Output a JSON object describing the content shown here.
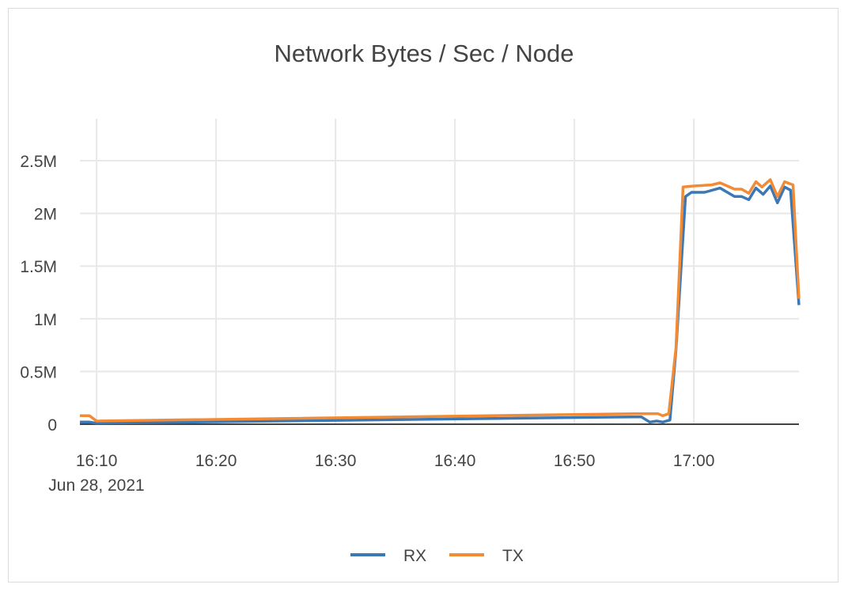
{
  "chart_data": {
    "type": "line",
    "title": "Network Bytes / Sec / Node",
    "xlabel": "",
    "ylabel": "",
    "date_label": "Jun 28, 2021",
    "xlim": [
      "16:08:36",
      "17:08:48"
    ],
    "ylim": [
      0,
      2900000
    ],
    "x_ticks": [
      "16:10",
      "16:20",
      "16:30",
      "16:40",
      "16:50",
      "17:00"
    ],
    "y_ticks": [
      {
        "value": 0,
        "label": "0"
      },
      {
        "value": 500000,
        "label": "0.5M"
      },
      {
        "value": 1000000,
        "label": "1M"
      },
      {
        "value": 1500000,
        "label": "1.5M"
      },
      {
        "value": 2000000,
        "label": "2M"
      },
      {
        "value": 2500000,
        "label": "2.5M"
      }
    ],
    "grid": true,
    "legend_position": "bottom",
    "series": [
      {
        "name": "RX",
        "color": "#3b78b4",
        "points": [
          [
            "16:08:36",
            20000
          ],
          [
            "16:09:24",
            20000
          ],
          [
            "16:10:00",
            10000
          ],
          [
            "16:55:00",
            70000
          ],
          [
            "16:55:36",
            70000
          ],
          [
            "16:56:18",
            20000
          ],
          [
            "16:56:54",
            30000
          ],
          [
            "16:57:24",
            20000
          ],
          [
            "16:58:00",
            40000
          ],
          [
            "16:58:30",
            700000
          ],
          [
            "16:59:18",
            2160000
          ],
          [
            "16:59:48",
            2200000
          ],
          [
            "17:00:54",
            2200000
          ],
          [
            "17:02:12",
            2240000
          ],
          [
            "17:03:24",
            2160000
          ],
          [
            "17:04:00",
            2160000
          ],
          [
            "17:04:36",
            2130000
          ],
          [
            "17:05:12",
            2240000
          ],
          [
            "17:05:48",
            2180000
          ],
          [
            "17:06:24",
            2260000
          ],
          [
            "17:07:00",
            2100000
          ],
          [
            "17:07:36",
            2250000
          ],
          [
            "17:08:06",
            2220000
          ],
          [
            "17:08:48",
            1130000
          ]
        ]
      },
      {
        "name": "TX",
        "color": "#f28b35",
        "points": [
          [
            "16:08:36",
            80000
          ],
          [
            "16:09:24",
            80000
          ],
          [
            "16:10:00",
            30000
          ],
          [
            "16:55:00",
            100000
          ],
          [
            "16:57:00",
            100000
          ],
          [
            "16:57:24",
            80000
          ],
          [
            "16:57:54",
            100000
          ],
          [
            "16:58:30",
            720000
          ],
          [
            "16:59:06",
            2250000
          ],
          [
            "17:00:00",
            2260000
          ],
          [
            "17:01:30",
            2270000
          ],
          [
            "17:02:12",
            2290000
          ],
          [
            "17:03:24",
            2230000
          ],
          [
            "17:04:00",
            2230000
          ],
          [
            "17:04:36",
            2190000
          ],
          [
            "17:05:12",
            2300000
          ],
          [
            "17:05:42",
            2250000
          ],
          [
            "17:06:24",
            2320000
          ],
          [
            "17:07:00",
            2160000
          ],
          [
            "17:07:36",
            2300000
          ],
          [
            "17:08:18",
            2270000
          ],
          [
            "17:08:48",
            1190000
          ]
        ]
      }
    ]
  }
}
